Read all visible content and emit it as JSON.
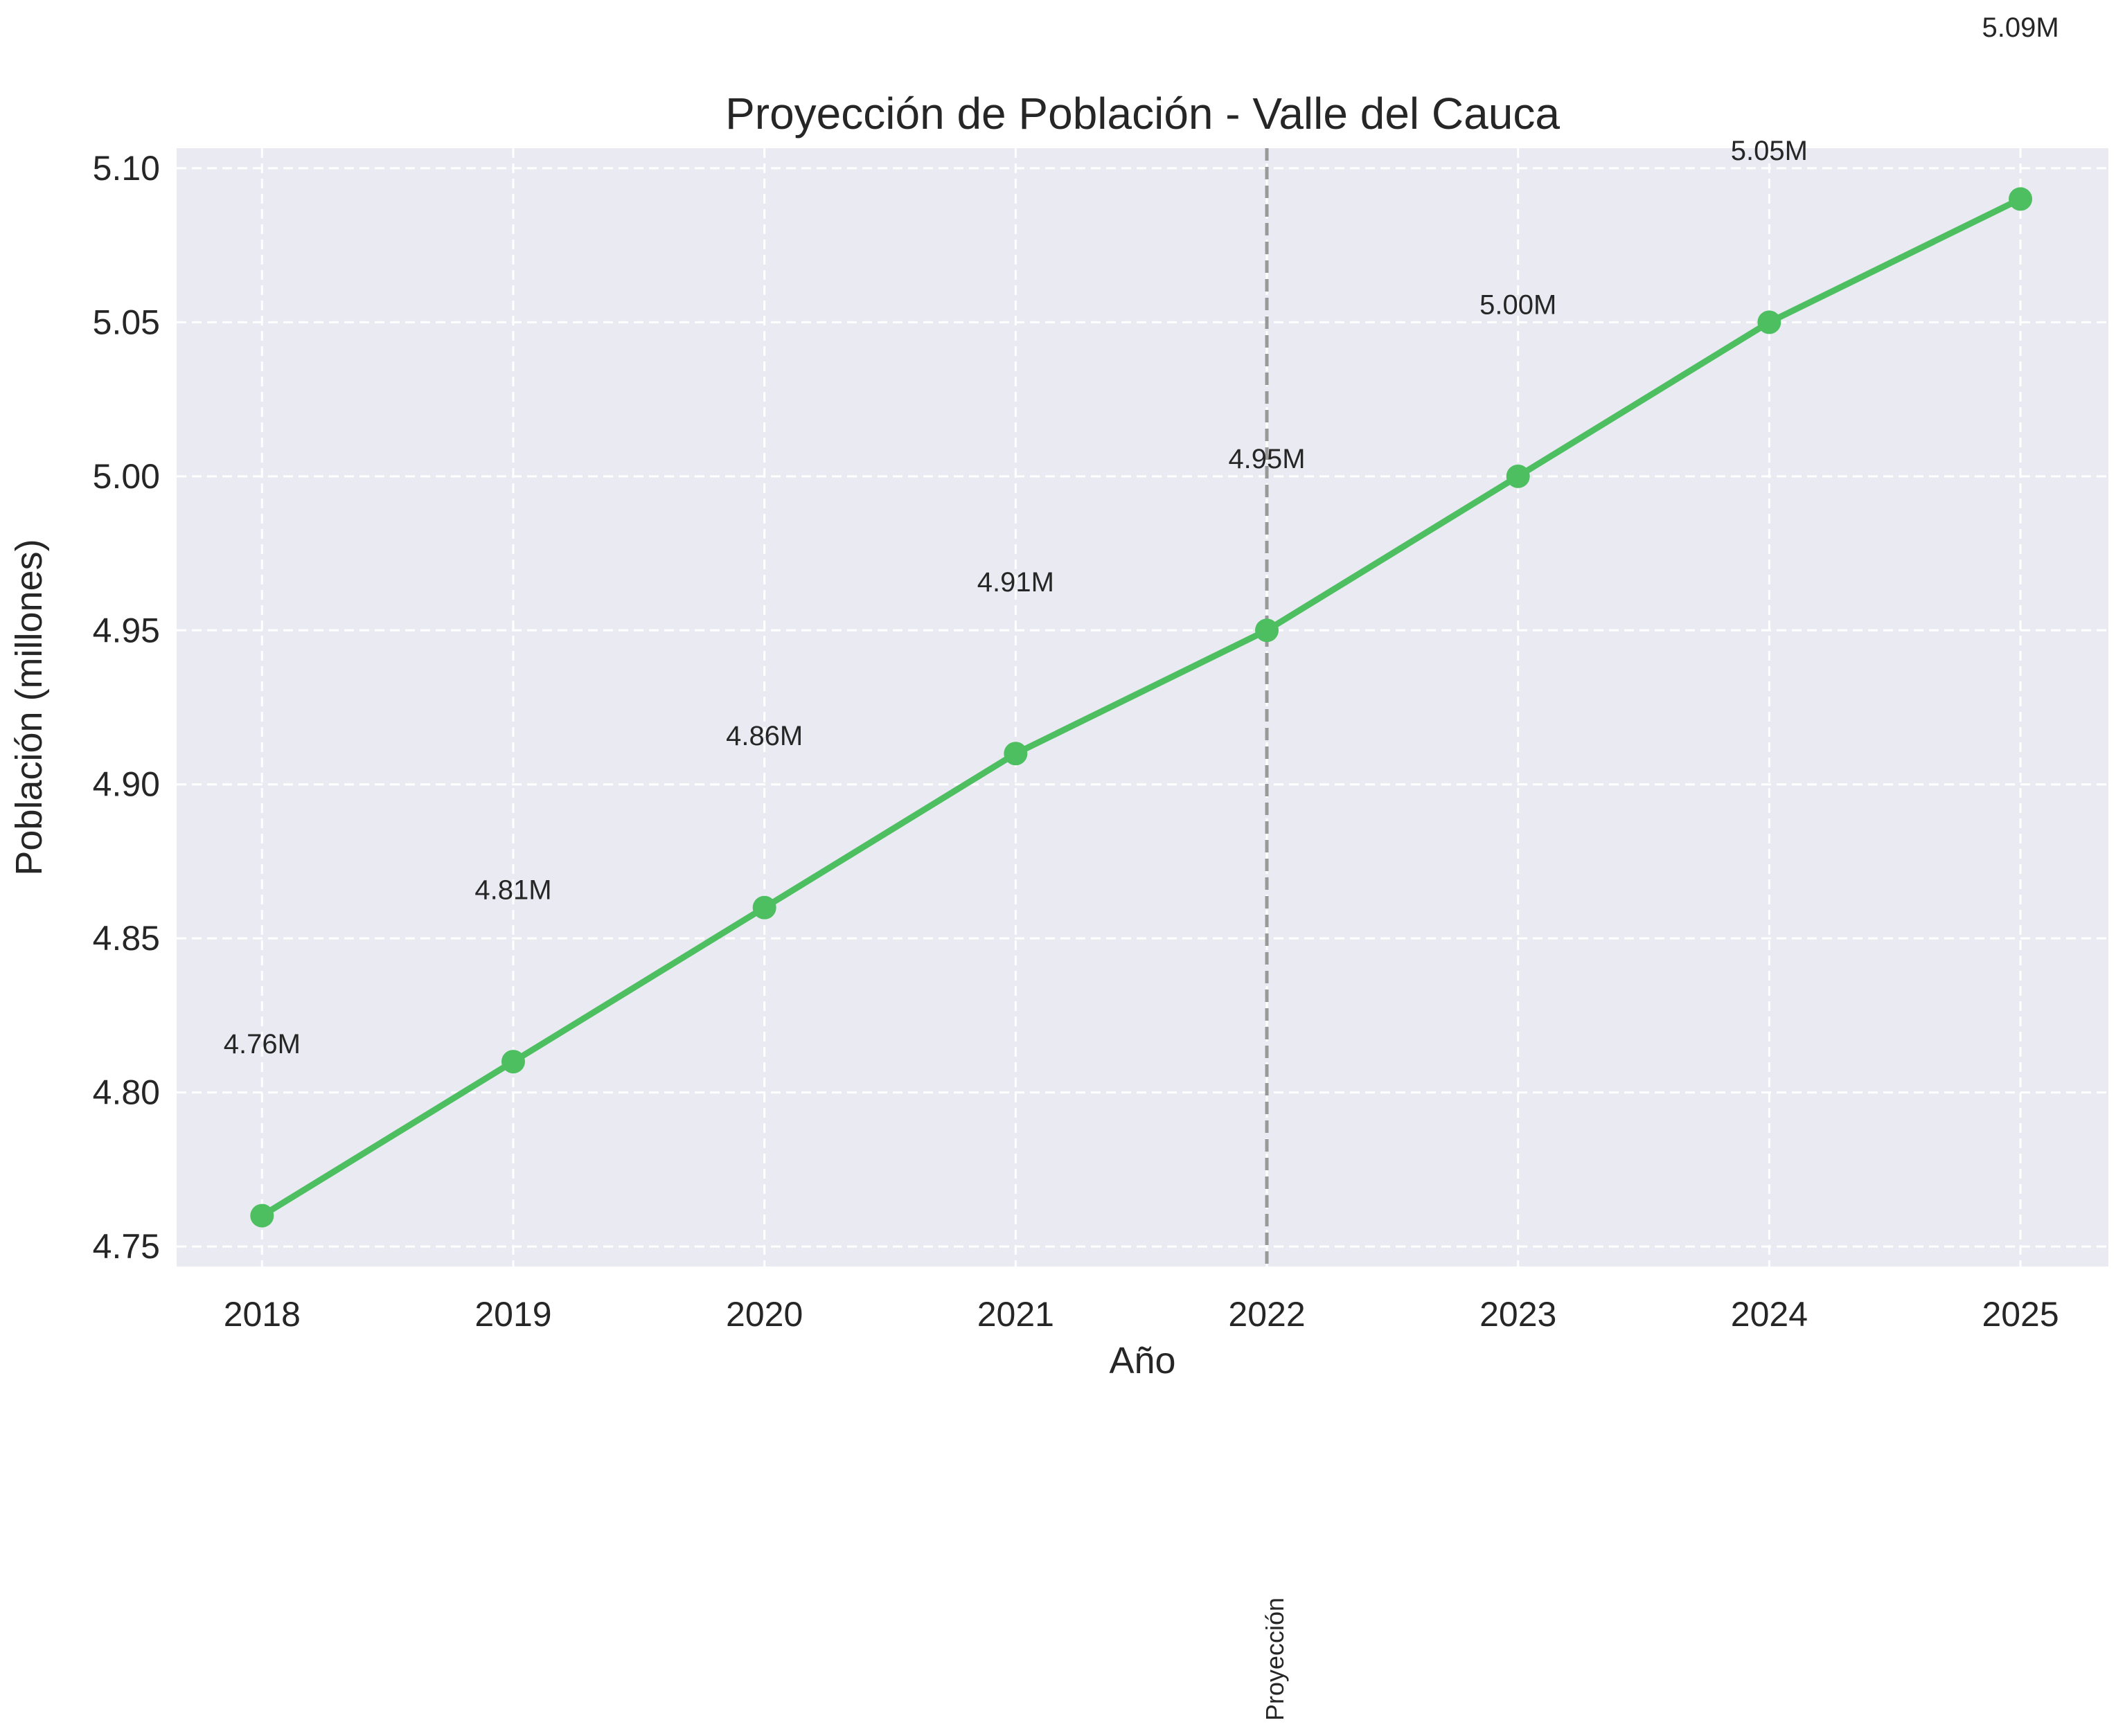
{
  "chart_data": {
    "type": "line",
    "title": "Proyección de Población - Valle del Cauca",
    "xlabel": "Año",
    "ylabel": "Población (millones)",
    "x": [
      2018,
      2019,
      2020,
      2021,
      2022,
      2023,
      2024,
      2025
    ],
    "series": [
      {
        "values": [
          4.76,
          4.81,
          4.86,
          4.91,
          4.95,
          5.0,
          5.05,
          5.09
        ],
        "color": "#4dbf61"
      }
    ],
    "data_labels": [
      "4.76M",
      "4.81M",
      "4.86M",
      "4.91M",
      "4.95M",
      "5.00M",
      "5.05M",
      "5.09M"
    ],
    "yticks": [
      "4.75",
      "4.80",
      "4.85",
      "4.90",
      "4.95",
      "5.00",
      "5.05",
      "5.10"
    ],
    "xticks": [
      "2018",
      "2019",
      "2020",
      "2021",
      "2022",
      "2023",
      "2024",
      "2025"
    ],
    "xlim": [
      2017.66,
      2025.35
    ],
    "ylim": [
      4.7435,
      5.1065
    ],
    "grid": true,
    "grid_style": "dashed",
    "plot_background": "#eaeaf2",
    "vline": {
      "x": 2022,
      "label": "Proyección",
      "color": "#999999",
      "style": "dashed"
    }
  }
}
